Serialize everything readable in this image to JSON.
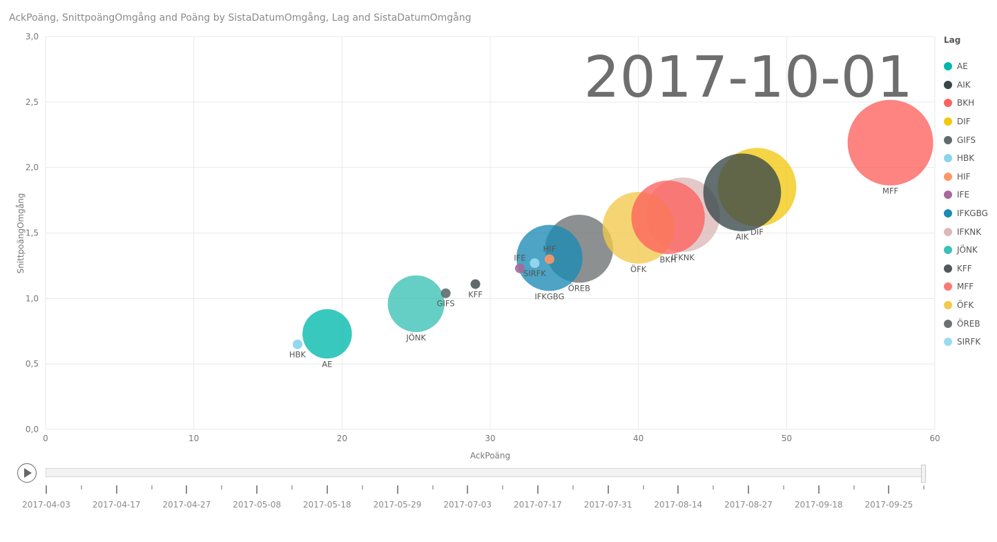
{
  "title": "AckPoäng, SnittpoängOmgång and Poäng by SistaDatumOmgång, Lag and SistaDatumOmgång",
  "current_date": "2017-10-01",
  "legend_title": "Lag",
  "chart_data": {
    "type": "scatter",
    "title": "AckPoäng, SnittpoängOmgång and Poäng by SistaDatumOmgång, Lag and SistaDatumOmgång",
    "xlabel": "AckPoäng",
    "ylabel": "SnittpoängOmgång",
    "size_field": "Poäng",
    "xlim": [
      0,
      60
    ],
    "ylim": [
      0,
      3
    ],
    "x_ticks": [
      "0",
      "10",
      "20",
      "30",
      "40",
      "50",
      "60"
    ],
    "y_ticks": [
      "0,0",
      "0,5",
      "1,0",
      "1,5",
      "2,0",
      "2,5",
      "3,0"
    ],
    "grid": true,
    "legend_position": "right",
    "series": [
      {
        "name": "IFKNK",
        "color": "#DDB8B8",
        "x": 43,
        "y": 1.64,
        "size": 43,
        "label_dx": 0,
        "label_pos": "below"
      },
      {
        "name": "DIF",
        "color": "#F2C811",
        "x": 48,
        "y": 1.85,
        "size": 48,
        "label_pos": "below"
      },
      {
        "name": "AIK",
        "color": "#374649",
        "x": 47,
        "y": 1.81,
        "size": 47,
        "label_pos": "below"
      },
      {
        "name": "MFF",
        "color": "#FD625E",
        "x": 57,
        "y": 2.19,
        "size": 57,
        "label_pos": "below"
      },
      {
        "name": "ÖREB",
        "color": "#6B7172",
        "x": 36,
        "y": 1.38,
        "size": 36,
        "label_pos": "below"
      },
      {
        "name": "IFKGBG",
        "color": "#1B8AB4",
        "x": 34,
        "y": 1.31,
        "size": 34,
        "label_pos": "below"
      },
      {
        "name": "ÖFK",
        "color": "#F2C94C",
        "x": 40,
        "y": 1.54,
        "size": 40,
        "label_pos": "below"
      },
      {
        "name": "BKH",
        "color": "#FD625E",
        "x": 42,
        "y": 1.62,
        "size": 42,
        "label_pos": "below"
      },
      {
        "name": "JÖNK",
        "color": "#3BC1B5",
        "x": 25,
        "y": 0.96,
        "size": 25,
        "label_pos": "below"
      },
      {
        "name": "AE",
        "color": "#01B8AA",
        "x": 19,
        "y": 0.73,
        "size": 19,
        "label_pos": "below"
      },
      {
        "name": "HBK",
        "color": "#8AD4EB",
        "x": 17,
        "y": 0.65,
        "size": 2,
        "label_pos": "below"
      },
      {
        "name": "GIFS",
        "color": "#5F6B6D",
        "x": 27,
        "y": 1.04,
        "size": 2,
        "label_pos": "below"
      },
      {
        "name": "KFF",
        "color": "#505A5B",
        "x": 29,
        "y": 1.11,
        "size": 2,
        "label_pos": "below"
      },
      {
        "name": "IFE",
        "color": "#A66999",
        "x": 32,
        "y": 1.23,
        "size": 2,
        "label_pos": "above"
      },
      {
        "name": "HIF",
        "color": "#FE9666",
        "x": 34,
        "y": 1.3,
        "size": 2,
        "label_pos": "above"
      },
      {
        "name": "SIRFK",
        "color": "#9ADCEF",
        "x": 33,
        "y": 1.27,
        "size": 2,
        "label_pos": "below"
      }
    ]
  },
  "legend": [
    {
      "name": "AE",
      "color": "#01B8AA"
    },
    {
      "name": "AIK",
      "color": "#374649"
    },
    {
      "name": "BKH",
      "color": "#FD625E"
    },
    {
      "name": "DIF",
      "color": "#F2C80F"
    },
    {
      "name": "GIFS",
      "color": "#5F6B6D"
    },
    {
      "name": "HBK",
      "color": "#8AD4EB"
    },
    {
      "name": "HIF",
      "color": "#FE9666"
    },
    {
      "name": "IFE",
      "color": "#A66999"
    },
    {
      "name": "IFKGBG",
      "color": "#1B8AB4"
    },
    {
      "name": "IFKNK",
      "color": "#DDB8B8"
    },
    {
      "name": "JÖNK",
      "color": "#3BC1B5"
    },
    {
      "name": "KFF",
      "color": "#505A5B"
    },
    {
      "name": "MFF",
      "color": "#FD7976"
    },
    {
      "name": "ÖFK",
      "color": "#F2C94C"
    },
    {
      "name": "ÖREB",
      "color": "#6B7172"
    },
    {
      "name": "SIRFK",
      "color": "#9ADCEF"
    }
  ],
  "play_axis": {
    "icon": "play-icon",
    "labels": [
      "2017-04-03",
      "2017-04-17",
      "2017-04-27",
      "2017-05-08",
      "2017-05-18",
      "2017-05-29",
      "2017-07-03",
      "2017-07-17",
      "2017-07-31",
      "2017-08-14",
      "2017-08-27",
      "2017-09-18",
      "2017-09-25"
    ],
    "current_index": 1.0
  }
}
